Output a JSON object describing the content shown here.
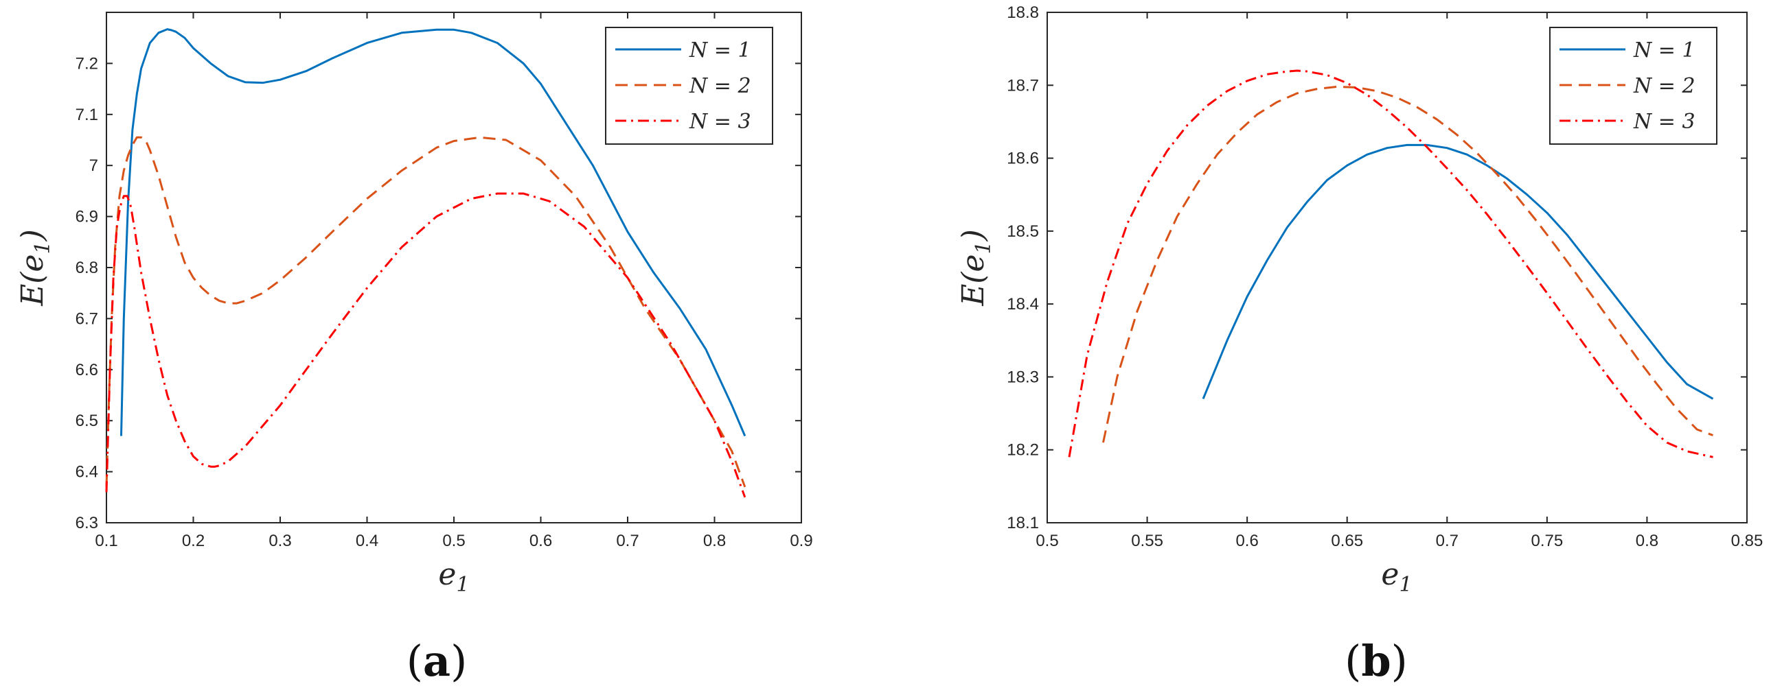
{
  "chart_data": [
    {
      "type": "line",
      "caption_open": "(",
      "caption": "a",
      "caption_close": ")",
      "xlabel": "e",
      "xlabel_sub": "1",
      "ylabel": "E(e",
      "ylabel_sub": "1",
      "ylabel_close": ")",
      "xlim": [
        0.1,
        0.9
      ],
      "ylim": [
        6.3,
        7.3
      ],
      "xticks": [
        "0.1",
        "0.2",
        "0.3",
        "0.4",
        "0.5",
        "0.6",
        "0.7",
        "0.8",
        "0.9"
      ],
      "yticks": [
        "6.3",
        "6.4",
        "6.5",
        "6.6",
        "6.7",
        "6.8",
        "6.9",
        "7",
        "7.1",
        "7.2"
      ],
      "legend_position": "top-right",
      "series": [
        {
          "name": "N = 1",
          "legend_label": "N = 1",
          "color": "#0072BD",
          "dash": "solid",
          "x": [
            0.117,
            0.12,
            0.125,
            0.13,
            0.135,
            0.14,
            0.15,
            0.16,
            0.17,
            0.175,
            0.18,
            0.19,
            0.2,
            0.22,
            0.24,
            0.26,
            0.28,
            0.3,
            0.33,
            0.36,
            0.4,
            0.44,
            0.48,
            0.5,
            0.52,
            0.55,
            0.58,
            0.6,
            0.63,
            0.66,
            0.7,
            0.73,
            0.76,
            0.79,
            0.82,
            0.835
          ],
          "y": [
            6.47,
            6.7,
            6.93,
            7.07,
            7.14,
            7.19,
            7.24,
            7.26,
            7.267,
            7.265,
            7.262,
            7.25,
            7.23,
            7.2,
            7.175,
            7.163,
            7.162,
            7.168,
            7.185,
            7.21,
            7.24,
            7.26,
            7.266,
            7.266,
            7.26,
            7.24,
            7.2,
            7.16,
            7.08,
            7.0,
            6.87,
            6.79,
            6.72,
            6.64,
            6.53,
            6.47
          ]
        },
        {
          "name": "N = 2",
          "legend_label": "N = 2",
          "color": "#D95319",
          "dash": "dashed",
          "x": [
            0.1,
            0.103,
            0.106,
            0.11,
            0.115,
            0.12,
            0.125,
            0.13,
            0.135,
            0.14,
            0.145,
            0.15,
            0.16,
            0.17,
            0.18,
            0.19,
            0.2,
            0.21,
            0.22,
            0.23,
            0.24,
            0.25,
            0.26,
            0.28,
            0.3,
            0.33,
            0.36,
            0.4,
            0.44,
            0.48,
            0.5,
            0.53,
            0.56,
            0.6,
            0.64,
            0.68,
            0.72,
            0.76,
            0.8,
            0.82,
            0.835
          ],
          "y": [
            6.37,
            6.55,
            6.7,
            6.84,
            6.94,
            6.99,
            7.02,
            7.04,
            7.055,
            7.055,
            7.05,
            7.03,
            6.98,
            6.92,
            6.86,
            6.81,
            6.78,
            6.76,
            6.745,
            6.735,
            6.73,
            6.73,
            6.735,
            6.75,
            6.775,
            6.82,
            6.87,
            6.935,
            6.99,
            7.035,
            7.048,
            7.055,
            7.05,
            7.01,
            6.94,
            6.84,
            6.72,
            6.62,
            6.5,
            6.44,
            6.37
          ]
        },
        {
          "name": "N = 3",
          "legend_label": "N = 3",
          "color": "#FF0000",
          "dash": "dashdot",
          "x": [
            0.1,
            0.104,
            0.108,
            0.112,
            0.116,
            0.12,
            0.124,
            0.128,
            0.132,
            0.14,
            0.15,
            0.16,
            0.17,
            0.18,
            0.19,
            0.2,
            0.21,
            0.22,
            0.225,
            0.23,
            0.24,
            0.26,
            0.28,
            0.3,
            0.33,
            0.36,
            0.4,
            0.44,
            0.48,
            0.52,
            0.55,
            0.58,
            0.61,
            0.65,
            0.7,
            0.75,
            0.8,
            0.82,
            0.835
          ],
          "y": [
            6.36,
            6.6,
            6.78,
            6.88,
            6.92,
            6.94,
            6.94,
            6.92,
            6.88,
            6.79,
            6.7,
            6.62,
            6.55,
            6.5,
            6.46,
            6.43,
            6.415,
            6.41,
            6.41,
            6.412,
            6.42,
            6.45,
            6.49,
            6.53,
            6.6,
            6.67,
            6.76,
            6.84,
            6.9,
            6.935,
            6.945,
            6.945,
            6.93,
            6.88,
            6.78,
            6.65,
            6.5,
            6.42,
            6.35
          ]
        }
      ]
    },
    {
      "type": "line",
      "caption_open": "(",
      "caption": "b",
      "caption_close": ")",
      "xlabel": "e",
      "xlabel_sub": "1",
      "ylabel": "E(e",
      "ylabel_sub": "1",
      "ylabel_close": ")",
      "xlim": [
        0.5,
        0.85
      ],
      "ylim": [
        18.1,
        18.8
      ],
      "xticks": [
        "0.5",
        "0.55",
        "0.6",
        "0.65",
        "0.7",
        "0.75",
        "0.8",
        "0.85"
      ],
      "yticks": [
        "18.1",
        "18.2",
        "18.3",
        "18.4",
        "18.5",
        "18.6",
        "18.7",
        "18.8"
      ],
      "legend_position": "top-right",
      "series": [
        {
          "name": "N = 1",
          "legend_label": "N = 1",
          "color": "#0072BD",
          "dash": "solid",
          "x": [
            0.578,
            0.59,
            0.6,
            0.61,
            0.62,
            0.63,
            0.64,
            0.65,
            0.66,
            0.67,
            0.68,
            0.69,
            0.7,
            0.71,
            0.72,
            0.73,
            0.74,
            0.75,
            0.76,
            0.77,
            0.78,
            0.79,
            0.8,
            0.81,
            0.82,
            0.833
          ],
          "y": [
            18.27,
            18.35,
            18.41,
            18.46,
            18.505,
            18.54,
            18.57,
            18.59,
            18.605,
            18.614,
            18.618,
            18.618,
            18.614,
            18.605,
            18.59,
            18.572,
            18.55,
            18.525,
            18.495,
            18.46,
            18.425,
            18.39,
            18.355,
            18.32,
            18.29,
            18.27
          ]
        },
        {
          "name": "N = 2",
          "legend_label": "N = 2",
          "color": "#D95319",
          "dash": "dashed",
          "x": [
            0.528,
            0.535,
            0.545,
            0.555,
            0.565,
            0.575,
            0.585,
            0.595,
            0.605,
            0.615,
            0.625,
            0.635,
            0.645,
            0.655,
            0.665,
            0.675,
            0.685,
            0.695,
            0.705,
            0.715,
            0.725,
            0.735,
            0.745,
            0.755,
            0.765,
            0.775,
            0.785,
            0.795,
            0.805,
            0.815,
            0.825,
            0.833
          ],
          "y": [
            18.21,
            18.3,
            18.39,
            18.46,
            18.52,
            18.565,
            18.605,
            18.635,
            18.66,
            18.677,
            18.689,
            18.695,
            18.698,
            18.697,
            18.692,
            18.683,
            18.67,
            18.653,
            18.632,
            18.607,
            18.578,
            18.547,
            18.513,
            18.477,
            18.44,
            18.402,
            18.364,
            18.326,
            18.29,
            18.256,
            18.228,
            18.22
          ]
        },
        {
          "name": "N = 3",
          "legend_label": "N = 3",
          "color": "#FF0000",
          "dash": "dashdot",
          "x": [
            0.511,
            0.52,
            0.53,
            0.54,
            0.55,
            0.56,
            0.57,
            0.58,
            0.59,
            0.6,
            0.61,
            0.62,
            0.625,
            0.63,
            0.64,
            0.65,
            0.66,
            0.67,
            0.68,
            0.69,
            0.7,
            0.71,
            0.72,
            0.73,
            0.74,
            0.75,
            0.76,
            0.77,
            0.78,
            0.79,
            0.8,
            0.81,
            0.82,
            0.833
          ],
          "y": [
            18.19,
            18.33,
            18.43,
            18.51,
            18.565,
            18.61,
            18.645,
            18.672,
            18.692,
            18.706,
            18.715,
            18.719,
            18.72,
            18.719,
            18.714,
            18.703,
            18.687,
            18.666,
            18.642,
            18.615,
            18.586,
            18.556,
            18.523,
            18.488,
            18.452,
            18.415,
            18.377,
            18.339,
            18.302,
            18.266,
            18.233,
            18.21,
            18.198,
            18.19
          ]
        }
      ]
    }
  ]
}
